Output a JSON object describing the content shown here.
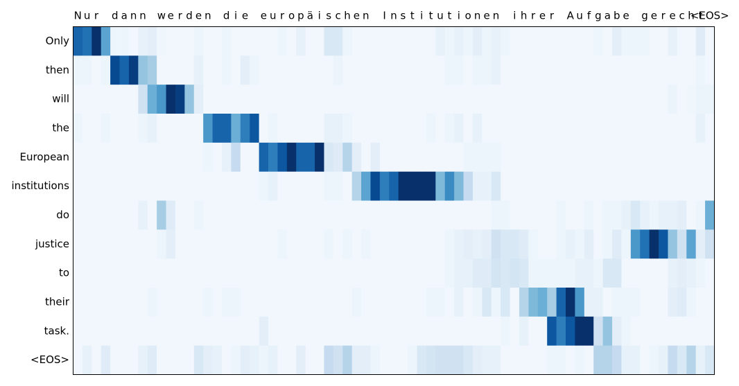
{
  "chart_data": {
    "type": "heatmap",
    "colormap": "Blues",
    "clim": [
      0,
      1
    ],
    "columns": [
      "N",
      "u",
      "r",
      null,
      "d",
      "a",
      "n",
      "n",
      null,
      "w",
      "e",
      "r",
      "d",
      "e",
      "n",
      null,
      "d",
      "i",
      "e",
      null,
      "e",
      "u",
      "r",
      "o",
      "p",
      "ä",
      "i",
      "s",
      "c",
      "h",
      "e",
      "n",
      null,
      "I",
      "n",
      "s",
      "t",
      "i",
      "t",
      "u",
      "t",
      "i",
      "o",
      "n",
      "e",
      "n",
      null,
      "i",
      "h",
      "r",
      "e",
      "r",
      null,
      "A",
      "u",
      "f",
      "g",
      "a",
      "b",
      "e",
      null,
      "g",
      "e",
      "r",
      "e",
      "c",
      "h",
      "t",
      "<EOS>"
    ],
    "rows": [
      "Only",
      "then",
      "will",
      "the",
      "European",
      "institutions",
      "do",
      "justice",
      "to",
      "their",
      "task.",
      "<EOS>"
    ],
    "values": [
      [
        0.8,
        0.75,
        1.0,
        0.55,
        0.05,
        0.05,
        0.03,
        0.08,
        0.1,
        0.04,
        0.03,
        0.03,
        0.03,
        0.05,
        0.03,
        0.03,
        0.05,
        0.03,
        0.03,
        0.03,
        0.03,
        0.03,
        0.05,
        0.03,
        0.08,
        0.03,
        0.03,
        0.15,
        0.15,
        0.05,
        0.03,
        0.03,
        0.03,
        0.03,
        0.03,
        0.03,
        0.03,
        0.03,
        0.03,
        0.08,
        0.05,
        0.08,
        0.05,
        0.1,
        0.05,
        0.08,
        0.05,
        0.03,
        0.03,
        0.03,
        0.03,
        0.03,
        0.03,
        0.03,
        0.03,
        0.03,
        0.05,
        0.03,
        0.1,
        0.05,
        0.05,
        0.05,
        0.03,
        0.03,
        0.08,
        0.03,
        0.03,
        0.12,
        0.03
      ],
      [
        0.05,
        0.05,
        0.03,
        0.05,
        0.9,
        0.8,
        0.95,
        0.4,
        0.35,
        0.03,
        0.03,
        0.03,
        0.03,
        0.08,
        0.03,
        0.03,
        0.05,
        0.03,
        0.1,
        0.05,
        0.03,
        0.03,
        0.03,
        0.03,
        0.03,
        0.03,
        0.03,
        0.03,
        0.06,
        0.03,
        0.03,
        0.03,
        0.03,
        0.03,
        0.03,
        0.03,
        0.03,
        0.03,
        0.03,
        0.03,
        0.05,
        0.05,
        0.03,
        0.05,
        0.05,
        0.08,
        0.03,
        0.03,
        0.03,
        0.03,
        0.03,
        0.03,
        0.03,
        0.03,
        0.03,
        0.03,
        0.03,
        0.03,
        0.03,
        0.03,
        0.03,
        0.03,
        0.03,
        0.03,
        0.03,
        0.03,
        0.03,
        0.05,
        0.03
      ],
      [
        0.03,
        0.03,
        0.03,
        0.03,
        0.03,
        0.03,
        0.03,
        0.2,
        0.5,
        0.6,
        1.0,
        0.95,
        0.4,
        0.1,
        0.03,
        0.03,
        0.03,
        0.03,
        0.03,
        0.03,
        0.03,
        0.03,
        0.03,
        0.03,
        0.03,
        0.03,
        0.03,
        0.03,
        0.03,
        0.03,
        0.03,
        0.03,
        0.03,
        0.03,
        0.03,
        0.03,
        0.03,
        0.03,
        0.03,
        0.03,
        0.03,
        0.03,
        0.03,
        0.03,
        0.03,
        0.03,
        0.03,
        0.03,
        0.03,
        0.03,
        0.03,
        0.03,
        0.03,
        0.03,
        0.03,
        0.03,
        0.03,
        0.03,
        0.03,
        0.03,
        0.03,
        0.03,
        0.03,
        0.03,
        0.06,
        0.03,
        0.04,
        0.06,
        0.06
      ],
      [
        0.05,
        0.03,
        0.03,
        0.05,
        0.03,
        0.03,
        0.03,
        0.05,
        0.08,
        0.03,
        0.03,
        0.03,
        0.03,
        0.03,
        0.6,
        0.8,
        0.8,
        0.5,
        0.7,
        0.85,
        0.03,
        0.05,
        0.03,
        0.03,
        0.03,
        0.03,
        0.03,
        0.08,
        0.08,
        0.05,
        0.03,
        0.03,
        0.03,
        0.03,
        0.03,
        0.03,
        0.03,
        0.03,
        0.05,
        0.03,
        0.05,
        0.08,
        0.03,
        0.08,
        0.03,
        0.03,
        0.03,
        0.03,
        0.03,
        0.03,
        0.03,
        0.03,
        0.03,
        0.03,
        0.03,
        0.03,
        0.03,
        0.03,
        0.03,
        0.03,
        0.03,
        0.03,
        0.03,
        0.03,
        0.03,
        0.03,
        0.03,
        0.08,
        0.03
      ],
      [
        0.03,
        0.03,
        0.03,
        0.03,
        0.03,
        0.03,
        0.03,
        0.03,
        0.03,
        0.03,
        0.03,
        0.03,
        0.03,
        0.03,
        0.05,
        0.03,
        0.08,
        0.25,
        0.03,
        0.03,
        0.8,
        0.7,
        0.85,
        1.0,
        0.8,
        0.8,
        1.0,
        0.15,
        0.12,
        0.3,
        0.1,
        0.03,
        0.1,
        0.03,
        0.03,
        0.03,
        0.03,
        0.03,
        0.03,
        0.03,
        0.03,
        0.03,
        0.05,
        0.05,
        0.05,
        0.05,
        0.03,
        0.03,
        0.03,
        0.03,
        0.03,
        0.03,
        0.03,
        0.03,
        0.03,
        0.03,
        0.03,
        0.03,
        0.03,
        0.03,
        0.03,
        0.03,
        0.03,
        0.03,
        0.03,
        0.03,
        0.03,
        0.03,
        0.03
      ],
      [
        0.03,
        0.03,
        0.03,
        0.03,
        0.03,
        0.03,
        0.03,
        0.03,
        0.03,
        0.03,
        0.03,
        0.03,
        0.03,
        0.03,
        0.03,
        0.03,
        0.03,
        0.03,
        0.03,
        0.03,
        0.05,
        0.08,
        0.03,
        0.03,
        0.03,
        0.03,
        0.03,
        0.05,
        0.05,
        0.03,
        0.3,
        0.55,
        0.9,
        0.7,
        0.8,
        1.0,
        1.0,
        1.0,
        1.0,
        0.45,
        0.65,
        0.45,
        0.25,
        0.08,
        0.08,
        0.15,
        0.03,
        0.03,
        0.03,
        0.03,
        0.03,
        0.03,
        0.03,
        0.03,
        0.03,
        0.03,
        0.03,
        0.03,
        0.03,
        0.03,
        0.03,
        0.03,
        0.03,
        0.03,
        0.03,
        0.03,
        0.03,
        0.03,
        0.03
      ],
      [
        0.03,
        0.03,
        0.03,
        0.03,
        0.03,
        0.03,
        0.03,
        0.08,
        0.03,
        0.35,
        0.12,
        0.03,
        0.03,
        0.05,
        0.03,
        0.03,
        0.03,
        0.03,
        0.03,
        0.03,
        0.03,
        0.03,
        0.03,
        0.03,
        0.03,
        0.03,
        0.03,
        0.03,
        0.03,
        0.03,
        0.03,
        0.03,
        0.03,
        0.03,
        0.03,
        0.03,
        0.03,
        0.03,
        0.03,
        0.03,
        0.03,
        0.03,
        0.03,
        0.03,
        0.03,
        0.05,
        0.05,
        0.03,
        0.03,
        0.03,
        0.03,
        0.03,
        0.05,
        0.03,
        0.03,
        0.05,
        0.03,
        0.05,
        0.05,
        0.08,
        0.15,
        0.08,
        0.05,
        0.08,
        0.08,
        0.1,
        0.03,
        0.05,
        0.5
      ],
      [
        0.03,
        0.03,
        0.03,
        0.03,
        0.03,
        0.03,
        0.03,
        0.03,
        0.03,
        0.05,
        0.1,
        0.03,
        0.03,
        0.03,
        0.03,
        0.03,
        0.03,
        0.03,
        0.03,
        0.03,
        0.03,
        0.03,
        0.05,
        0.03,
        0.03,
        0.03,
        0.03,
        0.05,
        0.03,
        0.05,
        0.03,
        0.05,
        0.03,
        0.03,
        0.03,
        0.03,
        0.03,
        0.03,
        0.03,
        0.03,
        0.05,
        0.08,
        0.1,
        0.08,
        0.1,
        0.2,
        0.15,
        0.15,
        0.12,
        0.05,
        0.03,
        0.03,
        0.05,
        0.08,
        0.05,
        0.1,
        0.03,
        0.05,
        0.12,
        0.05,
        0.6,
        0.75,
        1.0,
        0.85,
        0.4,
        0.2,
        0.55,
        0.1,
        0.2
      ],
      [
        0.03,
        0.03,
        0.03,
        0.03,
        0.03,
        0.03,
        0.03,
        0.03,
        0.03,
        0.03,
        0.03,
        0.03,
        0.03,
        0.03,
        0.03,
        0.03,
        0.03,
        0.03,
        0.03,
        0.03,
        0.03,
        0.03,
        0.03,
        0.03,
        0.03,
        0.03,
        0.03,
        0.03,
        0.03,
        0.03,
        0.03,
        0.03,
        0.03,
        0.03,
        0.03,
        0.03,
        0.03,
        0.03,
        0.03,
        0.03,
        0.05,
        0.08,
        0.08,
        0.12,
        0.12,
        0.18,
        0.15,
        0.18,
        0.15,
        0.05,
        0.05,
        0.05,
        0.05,
        0.05,
        0.08,
        0.08,
        0.05,
        0.15,
        0.15,
        0.03,
        0.03,
        0.03,
        0.03,
        0.03,
        0.08,
        0.1,
        0.08,
        0.05,
        0.03
      ],
      [
        0.03,
        0.03,
        0.03,
        0.03,
        0.03,
        0.03,
        0.03,
        0.03,
        0.05,
        0.03,
        0.03,
        0.03,
        0.03,
        0.03,
        0.05,
        0.03,
        0.05,
        0.05,
        0.03,
        0.03,
        0.03,
        0.03,
        0.03,
        0.03,
        0.03,
        0.03,
        0.03,
        0.03,
        0.03,
        0.03,
        0.05,
        0.03,
        0.03,
        0.03,
        0.03,
        0.03,
        0.03,
        0.03,
        0.05,
        0.05,
        0.03,
        0.08,
        0.03,
        0.05,
        0.15,
        0.05,
        0.15,
        0.03,
        0.3,
        0.45,
        0.5,
        0.35,
        0.8,
        1.0,
        0.6,
        0.08,
        0.08,
        0.03,
        0.05,
        0.05,
        0.05,
        0.03,
        0.03,
        0.03,
        0.1,
        0.12,
        0.05,
        0.03,
        0.03
      ],
      [
        0.03,
        0.03,
        0.03,
        0.03,
        0.03,
        0.03,
        0.03,
        0.03,
        0.03,
        0.03,
        0.03,
        0.03,
        0.03,
        0.03,
        0.03,
        0.03,
        0.03,
        0.03,
        0.03,
        0.03,
        0.1,
        0.03,
        0.03,
        0.03,
        0.03,
        0.03,
        0.03,
        0.03,
        0.03,
        0.03,
        0.03,
        0.03,
        0.03,
        0.03,
        0.03,
        0.03,
        0.03,
        0.03,
        0.03,
        0.03,
        0.03,
        0.03,
        0.03,
        0.03,
        0.03,
        0.03,
        0.05,
        0.03,
        0.08,
        0.03,
        0.03,
        0.85,
        0.7,
        0.85,
        1.0,
        1.0,
        0.2,
        0.4,
        0.1,
        0.05,
        0.03,
        0.03,
        0.03,
        0.03,
        0.03,
        0.03,
        0.03,
        0.03,
        0.03
      ],
      [
        0.03,
        0.08,
        0.03,
        0.12,
        0.03,
        0.03,
        0.03,
        0.08,
        0.12,
        0.03,
        0.03,
        0.03,
        0.03,
        0.15,
        0.1,
        0.08,
        0.03,
        0.05,
        0.1,
        0.08,
        0.05,
        0.08,
        0.03,
        0.03,
        0.1,
        0.03,
        0.03,
        0.25,
        0.2,
        0.3,
        0.1,
        0.1,
        0.05,
        0.03,
        0.03,
        0.03,
        0.05,
        0.15,
        0.18,
        0.2,
        0.2,
        0.2,
        0.15,
        0.1,
        0.08,
        0.08,
        0.03,
        0.03,
        0.03,
        0.03,
        0.03,
        0.05,
        0.05,
        0.03,
        0.05,
        0.03,
        0.3,
        0.3,
        0.25,
        0.08,
        0.08,
        0.03,
        0.05,
        0.08,
        0.25,
        0.15,
        0.3,
        0.08,
        0.15
      ]
    ]
  }
}
